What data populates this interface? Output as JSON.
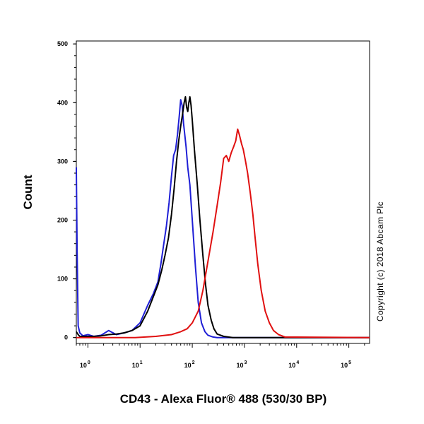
{
  "chart_data": {
    "type": "line",
    "title": "",
    "xlabel": "CD43 - Alexa Fluor® 488 (530/30 BP)",
    "ylabel": "Count",
    "x_scale": "log",
    "xlim": [
      0.6,
      250000
    ],
    "ylim": [
      -10,
      505
    ],
    "y_ticks": [
      "0",
      "100",
      "200",
      "300",
      "400",
      "500"
    ],
    "x_ticks": [
      {
        "value": 1,
        "base": "10",
        "exp": "0"
      },
      {
        "value": 10,
        "base": "10",
        "exp": "1"
      },
      {
        "value": 100,
        "base": "10",
        "exp": "2"
      },
      {
        "value": 1000,
        "base": "10",
        "exp": "3"
      },
      {
        "value": 10000,
        "base": "10",
        "exp": "4"
      },
      {
        "value": 100000,
        "base": "10",
        "exp": "5"
      }
    ],
    "grid": false,
    "legend": "none",
    "series": [
      {
        "color": "#1f1fd6",
        "x": [
          0.6,
          0.62,
          0.65,
          0.7,
          0.8,
          1.0,
          1.3,
          1.8,
          2.5,
          3.5,
          5,
          7,
          10,
          14,
          18,
          22,
          25,
          28,
          32,
          36,
          40,
          44,
          48,
          52,
          56,
          60,
          64,
          68,
          72,
          76,
          82,
          90,
          100,
          115,
          130,
          150,
          175,
          200,
          250,
          300,
          400,
          250000
        ],
        "y": [
          290,
          150,
          20,
          8,
          3,
          5,
          2,
          4,
          12,
          5,
          8,
          12,
          25,
          55,
          75,
          95,
          125,
          155,
          190,
          230,
          275,
          310,
          320,
          345,
          375,
          405,
          395,
          365,
          345,
          325,
          290,
          260,
          200,
          120,
          60,
          25,
          10,
          4,
          1,
          0,
          0,
          0
        ]
      },
      {
        "color": "#000000",
        "x": [
          0.6,
          0.65,
          0.7,
          0.8,
          1.0,
          1.3,
          1.8,
          2.5,
          3.5,
          5,
          7,
          10,
          14,
          18,
          22,
          26,
          30,
          35,
          40,
          45,
          50,
          55,
          60,
          65,
          70,
          74,
          78,
          82,
          86,
          90,
          95,
          100,
          110,
          125,
          140,
          160,
          180,
          200,
          230,
          260,
          300,
          400,
          600,
          250000
        ],
        "y": [
          10,
          5,
          2,
          2,
          2,
          2,
          3,
          5,
          6,
          8,
          12,
          20,
          45,
          70,
          90,
          115,
          140,
          170,
          210,
          255,
          300,
          335,
          360,
          380,
          400,
          410,
          392,
          385,
          400,
          410,
          395,
          370,
          320,
          260,
          200,
          140,
          90,
          55,
          30,
          15,
          6,
          2,
          0,
          0
        ]
      },
      {
        "color": "#e01010",
        "x": [
          0.6,
          1,
          3,
          8,
          20,
          40,
          60,
          80,
          100,
          130,
          160,
          200,
          250,
          300,
          350,
          400,
          450,
          500,
          560,
          620,
          680,
          740,
          800,
          880,
          950,
          1050,
          1150,
          1300,
          1450,
          1600,
          1800,
          2100,
          2500,
          3000,
          3600,
          4500,
          6000,
          250000
        ],
        "y": [
          0,
          0,
          0,
          0,
          2,
          5,
          10,
          15,
          25,
          45,
          80,
          130,
          180,
          225,
          265,
          305,
          310,
          300,
          315,
          325,
          335,
          355,
          345,
          330,
          320,
          300,
          280,
          245,
          210,
          170,
          125,
          80,
          45,
          25,
          12,
          5,
          1,
          0
        ]
      }
    ]
  },
  "copyright": "Copyright (c) 2018 Abcam Plc"
}
